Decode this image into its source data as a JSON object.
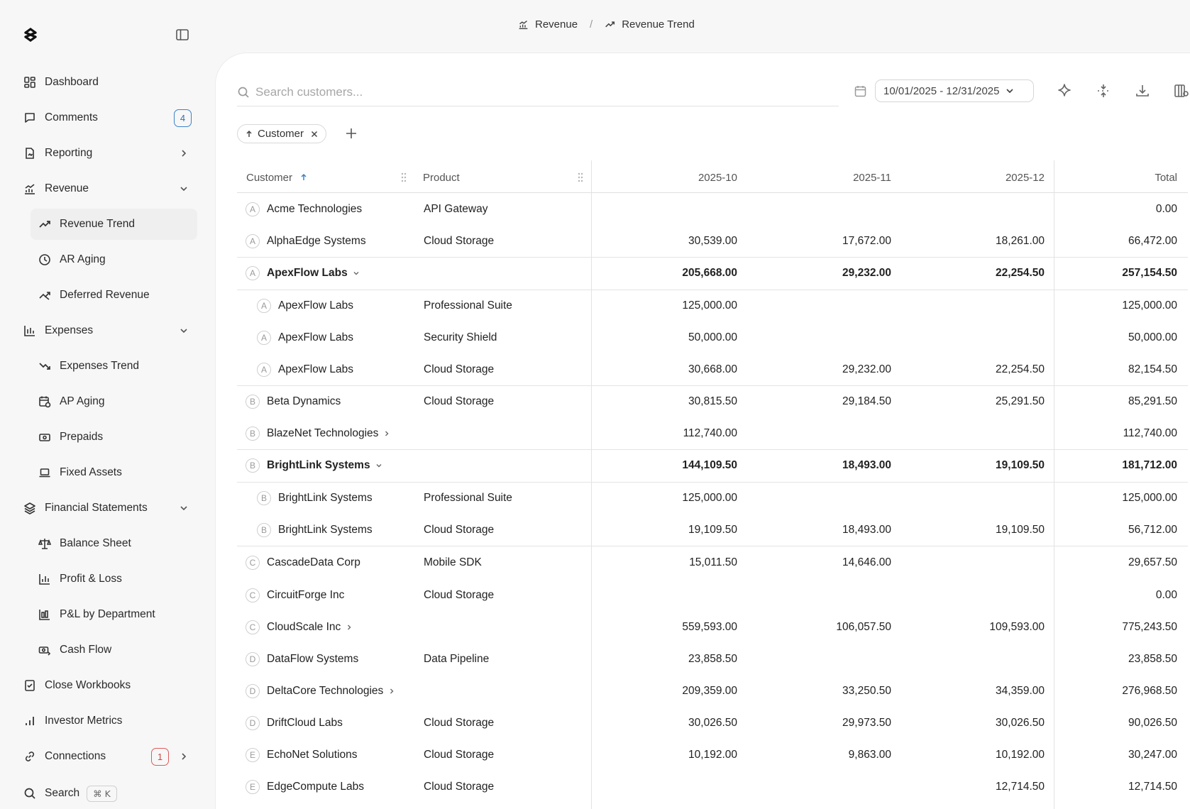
{
  "breadcrumb": {
    "section": "Revenue",
    "page": "Revenue Trend"
  },
  "nav": {
    "dashboard": "Dashboard",
    "comments": "Comments",
    "comments_badge": "4",
    "reporting": "Reporting",
    "revenue": "Revenue",
    "revenue_trend": "Revenue Trend",
    "ar_aging": "AR Aging",
    "deferred_revenue": "Deferred Revenue",
    "expenses": "Expenses",
    "expenses_trend": "Expenses Trend",
    "ap_aging": "AP Aging",
    "prepaids": "Prepaids",
    "fixed_assets": "Fixed Assets",
    "financial_statements": "Financial Statements",
    "balance_sheet": "Balance Sheet",
    "profit_loss": "Profit & Loss",
    "pl_by_department": "P&L by Department",
    "cash_flow": "Cash Flow",
    "close_workbooks": "Close Workbooks",
    "investor_metrics": "Investor Metrics",
    "connections": "Connections",
    "connections_badge": "1",
    "search": "Search",
    "search_shortcut": "⌘ K"
  },
  "toolbar": {
    "search_placeholder": "Search customers...",
    "date_range": "10/01/2025 - 12/31/2025"
  },
  "filter_chip": {
    "label": "Customer"
  },
  "table": {
    "headers": {
      "customer": "Customer",
      "product": "Product",
      "m1": "2025-10",
      "m2": "2025-11",
      "m3": "2025-12",
      "total": "Total"
    },
    "rows": [
      {
        "initial": "A",
        "customer": "Acme Technologies",
        "product": "API Gateway",
        "m1": "",
        "m2": "",
        "m3": "",
        "total": "0.00"
      },
      {
        "initial": "A",
        "customer": "AlphaEdge Systems",
        "product": "Cloud Storage",
        "m1": "30,539.00",
        "m2": "17,672.00",
        "m3": "18,261.00",
        "total": "66,472.00"
      },
      {
        "initial": "A",
        "customer": "ApexFlow Labs",
        "product": "",
        "m1": "205,668.00",
        "m2": "29,232.00",
        "m3": "22,254.50",
        "total": "257,154.50"
      },
      {
        "initial": "A",
        "customer": "ApexFlow Labs",
        "product": "Professional Suite",
        "m1": "125,000.00",
        "m2": "",
        "m3": "",
        "total": "125,000.00"
      },
      {
        "initial": "A",
        "customer": "ApexFlow Labs",
        "product": "Security Shield",
        "m1": "50,000.00",
        "m2": "",
        "m3": "",
        "total": "50,000.00"
      },
      {
        "initial": "A",
        "customer": "ApexFlow Labs",
        "product": "Cloud Storage",
        "m1": "30,668.00",
        "m2": "29,232.00",
        "m3": "22,254.50",
        "total": "82,154.50"
      },
      {
        "initial": "B",
        "customer": "Beta Dynamics",
        "product": "Cloud Storage",
        "m1": "30,815.50",
        "m2": "29,184.50",
        "m3": "25,291.50",
        "total": "85,291.50"
      },
      {
        "initial": "B",
        "customer": "BlazeNet Technologies",
        "product": "",
        "m1": "112,740.00",
        "m2": "",
        "m3": "",
        "total": "112,740.00"
      },
      {
        "initial": "B",
        "customer": "BrightLink Systems",
        "product": "",
        "m1": "144,109.50",
        "m2": "18,493.00",
        "m3": "19,109.50",
        "total": "181,712.00"
      },
      {
        "initial": "B",
        "customer": "BrightLink Systems",
        "product": "Professional Suite",
        "m1": "125,000.00",
        "m2": "",
        "m3": "",
        "total": "125,000.00"
      },
      {
        "initial": "B",
        "customer": "BrightLink Systems",
        "product": "Cloud Storage",
        "m1": "19,109.50",
        "m2": "18,493.00",
        "m3": "19,109.50",
        "total": "56,712.00"
      },
      {
        "initial": "C",
        "customer": "CascadeData Corp",
        "product": "Mobile SDK",
        "m1": "15,011.50",
        "m2": "14,646.00",
        "m3": "",
        "total": "29,657.50"
      },
      {
        "initial": "C",
        "customer": "CircuitForge Inc",
        "product": "Cloud Storage",
        "m1": "",
        "m2": "",
        "m3": "",
        "total": "0.00"
      },
      {
        "initial": "C",
        "customer": "CloudScale Inc",
        "product": "",
        "m1": "559,593.00",
        "m2": "106,057.50",
        "m3": "109,593.00",
        "total": "775,243.50"
      },
      {
        "initial": "D",
        "customer": "DataFlow Systems",
        "product": "Data Pipeline",
        "m1": "23,858.50",
        "m2": "",
        "m3": "",
        "total": "23,858.50"
      },
      {
        "initial": "D",
        "customer": "DeltaCore Technologies",
        "product": "",
        "m1": "209,359.00",
        "m2": "33,250.50",
        "m3": "34,359.00",
        "total": "276,968.50"
      },
      {
        "initial": "D",
        "customer": "DriftCloud Labs",
        "product": "Cloud Storage",
        "m1": "30,026.50",
        "m2": "29,973.50",
        "m3": "30,026.50",
        "total": "90,026.50"
      },
      {
        "initial": "E",
        "customer": "EchoNet Solutions",
        "product": "Cloud Storage",
        "m1": "10,192.00",
        "m2": "9,863.00",
        "m3": "10,192.00",
        "total": "30,247.00"
      },
      {
        "initial": "E",
        "customer": "EdgeCompute Labs",
        "product": "Cloud Storage",
        "m1": "",
        "m2": "",
        "m3": "12,714.50",
        "total": "12,714.50"
      }
    ]
  }
}
